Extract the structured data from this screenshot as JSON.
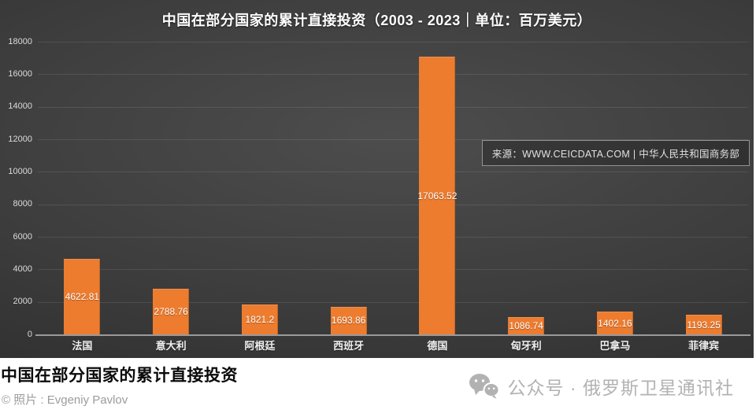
{
  "chart_data": {
    "type": "bar",
    "title": "中国在部分国家的累计直接投资（2003 - 2023｜单位：百万美元）",
    "categories": [
      "法国",
      "意大利",
      "阿根廷",
      "西班牙",
      "德国",
      "匈牙利",
      "巴拿马",
      "菲律宾"
    ],
    "values": [
      4622.81,
      2788.76,
      1821.2,
      1693.86,
      17063.52,
      1086.74,
      1402.16,
      1193.25
    ],
    "value_labels": [
      "4622.81",
      "2788.76",
      "1821.2",
      "1693.86",
      "17063.52",
      "1086.74",
      "1402.16",
      "1193.25"
    ],
    "xlabel": "",
    "ylabel": "",
    "ylim": [
      0,
      18000
    ],
    "ytick_step": 2000,
    "yticks": [
      0,
      2000,
      4000,
      6000,
      8000,
      10000,
      12000,
      14000,
      16000,
      18000
    ],
    "grid": true,
    "legend": false,
    "bar_color": "#ED7C2F",
    "value_label_color": "#FFFFFF",
    "value_label_position": "inside-center",
    "background_color": "#3d3d3d"
  },
  "source_box": {
    "text": "来源：WWW.CEICDATA.COM | 中华人民共和国商务部"
  },
  "footer": {
    "headline": "中国在部分国家的累计直接投资",
    "credit": "© 照片 : Evgeniy Pavlov",
    "account": "公众号 · 俄罗斯卫星通讯社"
  },
  "colors": {
    "accent_orange": "#ED7C2F",
    "photo_background": "#3d3d3d",
    "footer_background": "#FFFFFF",
    "muted_gray_text": "#9C9C9C",
    "account_gray": "#B2B2B2"
  }
}
